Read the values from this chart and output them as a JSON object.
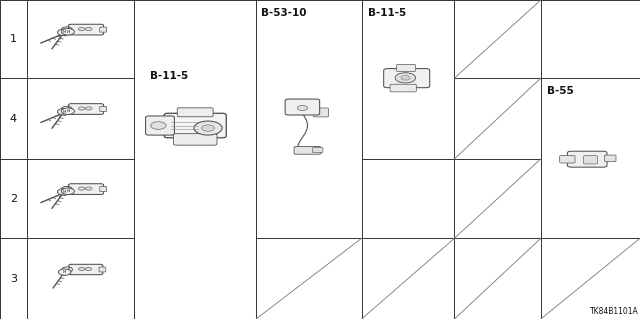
{
  "diagram_code": "TK84B1101A",
  "background": "#ffffff",
  "grid_color": "#333333",
  "text_color": "#111111",
  "fig_width": 6.4,
  "fig_height": 3.19,
  "labels": {
    "B-11-5_main": "B-11-5",
    "B-53-10": "B-53-10",
    "B-11-5_small": "B-11-5",
    "B-55": "B-55"
  },
  "row_numbers": [
    "1",
    "4",
    "2",
    "3"
  ],
  "col_bounds": [
    0.0,
    0.042,
    0.21,
    0.4,
    0.565,
    0.71,
    0.845,
    1.0
  ],
  "row_bounds": [
    1.0,
    0.755,
    0.502,
    0.253,
    0.0
  ]
}
